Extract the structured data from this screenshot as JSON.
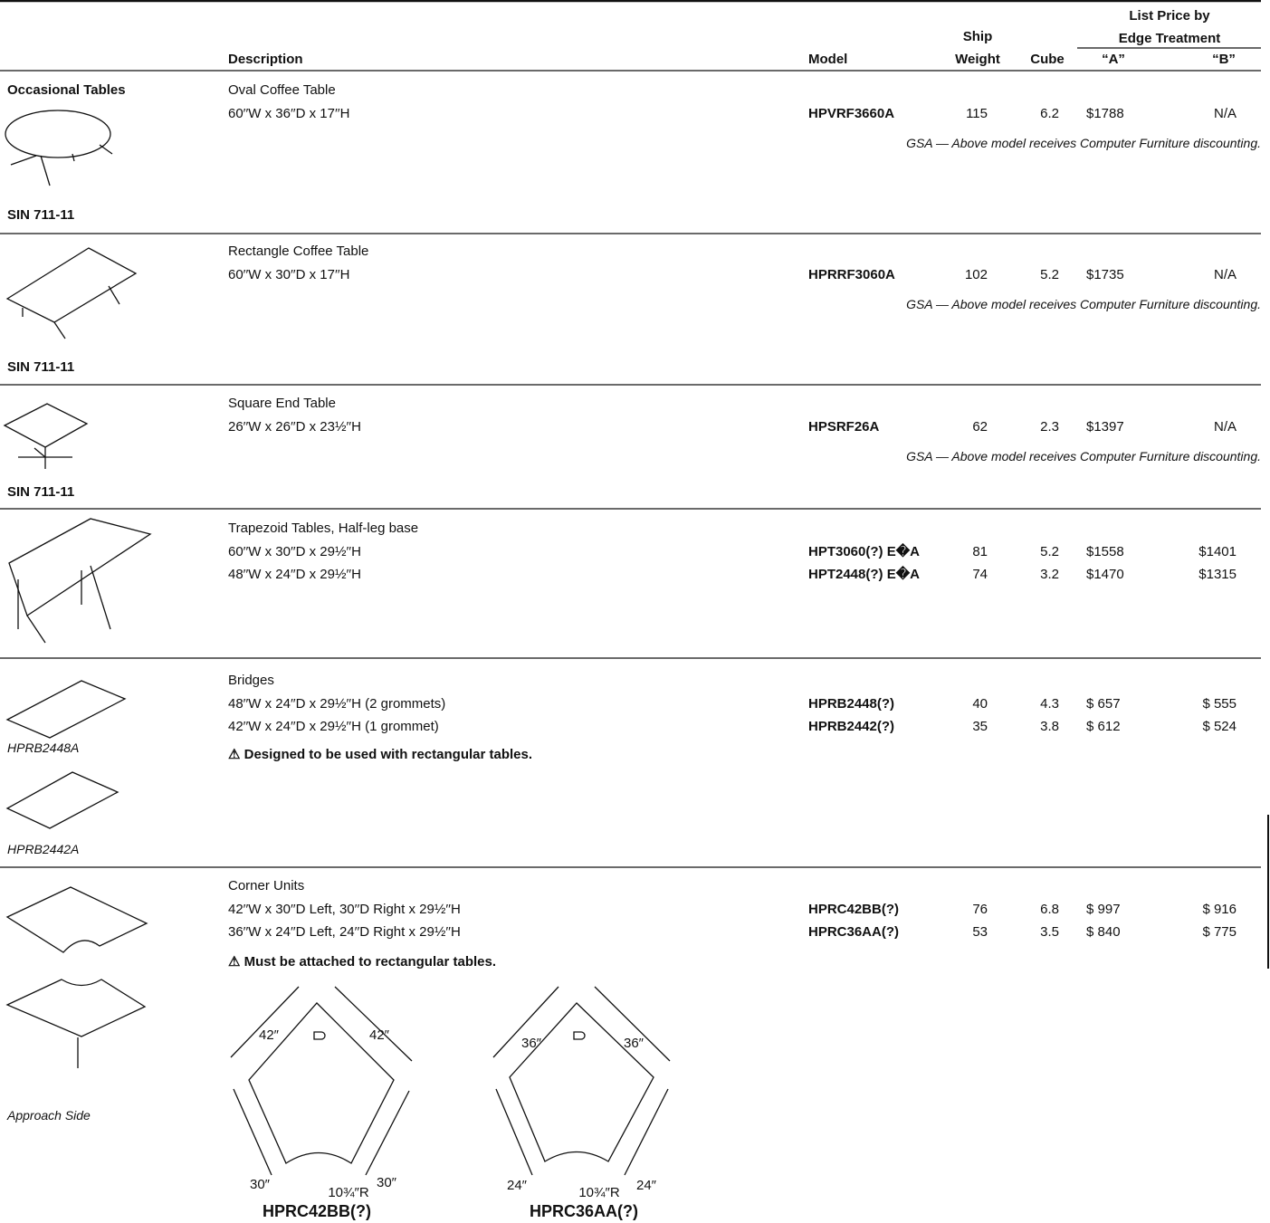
{
  "header": {
    "list_price": "List Price by",
    "edge_treatment": "Edge Treatment",
    "ship": "Ship",
    "weight": "Weight",
    "description": "Description",
    "model": "Model",
    "cube": "Cube",
    "price_a": "“A”",
    "price_b": "“B”"
  },
  "sections": [
    {
      "category": "Occasional Tables",
      "title": "Oval Coffee Table",
      "rows": [
        {
          "dims": "60′′W x 36′′D x 17′′H",
          "model": "HPVRF3660A",
          "weight": 115,
          "cube": 6.2,
          "price_a": "$1788",
          "price_b": "N/A"
        }
      ],
      "note": "GSA — Above model receives Computer Furniture discounting.",
      "sin": "SIN 711-11"
    },
    {
      "title": "Rectangle Coffee Table",
      "rows": [
        {
          "dims": "60′′W x 30′′D x 17′′H",
          "model": "HPRRF3060A",
          "weight": 102,
          "cube": 5.2,
          "price_a": "$1735",
          "price_b": "N/A"
        }
      ],
      "note": "GSA — Above model receives Computer Furniture discounting.",
      "sin": "SIN 711-11"
    },
    {
      "title": "Square End Table",
      "rows": [
        {
          "dims": "26′′W x 26′′D x 23½′′H",
          "model": "HPSRF26A",
          "weight": 62,
          "cube": 2.3,
          "price_a": "$1397",
          "price_b": "N/A"
        }
      ],
      "note": "GSA — Above model receives Computer Furniture discounting.",
      "sin": "SIN 711-11"
    },
    {
      "title": "Trapezoid Tables, Half-leg base",
      "rows": [
        {
          "dims": "60′′W x 30′′D x 29½′′H",
          "model": "HPT3060(?) E�A",
          "weight": 81,
          "cube": 5.2,
          "price_a": "$1558",
          "price_b": "$1401"
        },
        {
          "dims": "48′′W x 24′′D x 29½′′H",
          "model": "HPT2448(?) E�A",
          "weight": 74,
          "cube": 3.2,
          "price_a": "$1470",
          "price_b": "$1315"
        }
      ]
    },
    {
      "title": "Bridges",
      "rows": [
        {
          "dims": "48′′W x 24′′D x 29½′′H (2 grommets)",
          "model": "HPRB2448(?)",
          "weight": 40,
          "cube": 4.3,
          "price_a": "$ 657",
          "price_b": "$ 555"
        },
        {
          "dims": "42′′W x 24′′D x 29½′′H (1 grommet)",
          "model": "HPRB2442(?)",
          "weight": 35,
          "cube": 3.8,
          "price_a": "$ 612",
          "price_b": "$ 524"
        }
      ],
      "warning": "⚠ Designed to be used with rectangular tables.",
      "captions": [
        "HPRB2448A",
        "HPRB2442A"
      ]
    },
    {
      "title": "Corner Units",
      "rows": [
        {
          "dims": "42′′W x 30′′D Left, 30′′D Right x 29½′′H",
          "model": "HPRC42BB(?)",
          "weight": 76,
          "cube": 6.8,
          "price_a": "$ 997",
          "price_b": "$ 916"
        },
        {
          "dims": "36′′W x 24′′D Left, 24′′D Right x 29½′′H",
          "model": "HPRC36AA(?)",
          "weight": 53,
          "cube": 3.5,
          "price_a": "$ 840",
          "price_b": "$ 775"
        }
      ],
      "warning": "⚠ Must be attached to rectangular tables.",
      "captions": [
        "Approach Side"
      ]
    }
  ],
  "diagrams": [
    {
      "top_left": "42″",
      "top_right": "42″",
      "bottom_left": "30″",
      "bottom_right": "30″",
      "radius": "10¾″R",
      "label": "HPRC42BB(?)"
    },
    {
      "top_left": "36″",
      "top_right": "36″",
      "bottom_left": "24″",
      "bottom_right": "24″",
      "radius": "10¾″R",
      "label": "HPRC36AA(?)"
    }
  ]
}
